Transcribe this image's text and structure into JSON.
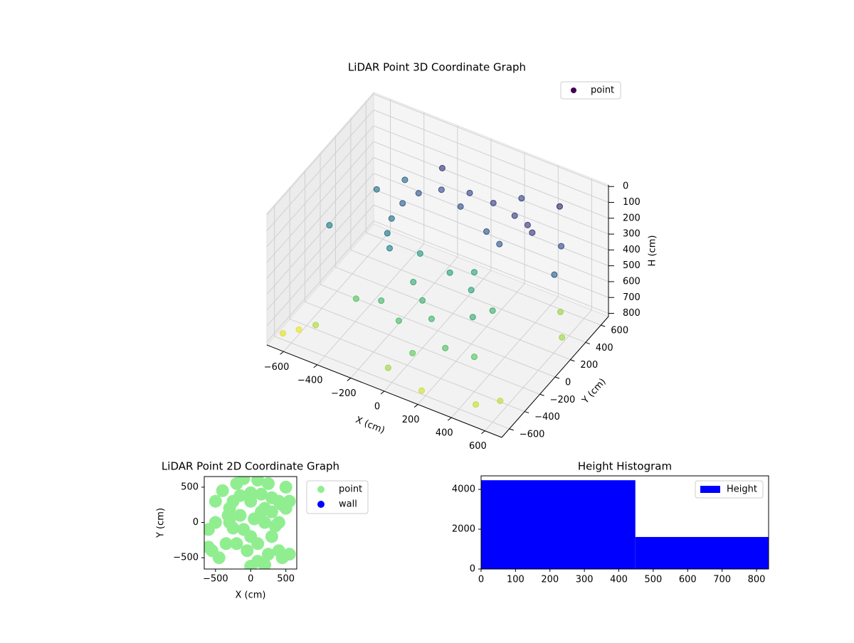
{
  "chart_data": [
    {
      "type": "scatter3d",
      "title": "LiDAR Point 3D Coordinate Graph",
      "xlabel": "X (cm)",
      "ylabel": "Y (cm)",
      "zlabel": "H (cm)",
      "colormap": "viridis",
      "legend": "upper right",
      "xlim": [
        -700,
        700
      ],
      "ylim": [
        -700,
        700
      ],
      "zlim": [
        820,
        -10
      ],
      "xticks": [
        {
          "value": -600,
          "label": "−600"
        },
        {
          "value": -400,
          "label": "−400"
        },
        {
          "value": -200,
          "label": "−200"
        },
        0,
        200,
        400,
        600
      ],
      "yticks": [
        {
          "value": -600,
          "label": "−600"
        },
        {
          "value": -400,
          "label": "−400"
        },
        {
          "value": -200,
          "label": "−200"
        },
        0,
        200,
        400,
        600
      ],
      "zticks": [
        0,
        100,
        200,
        300,
        400,
        500,
        600,
        700,
        800
      ],
      "series": [
        {
          "name": "point",
          "color": "#440154",
          "x": [
            -300,
            -250,
            -150,
            0,
            150,
            300,
            400,
            450,
            -320,
            -300,
            -250,
            0,
            200,
            300,
            -500,
            -600,
            600,
            650,
            500,
            -400,
            -100,
            0,
            100,
            200,
            150,
            -200,
            300,
            50,
            -50,
            250,
            400,
            -150,
            350,
            100,
            500,
            -600,
            650,
            550,
            -500,
            200,
            -650,
            600,
            -350,
            0,
            -200,
            250
          ],
          "y": [
            200,
            300,
            380,
            420,
            400,
            350,
            300,
            250,
            100,
            0,
            -80,
            300,
            200,
            150,
            300,
            -100,
            300,
            100,
            500,
            450,
            -100,
            -200,
            -300,
            0,
            150,
            -300,
            -200,
            50,
            -400,
            -450,
            -400,
            100,
            -50,
            -550,
            -600,
            -500,
            200,
            400,
            -500,
            -650,
            -600,
            -500,
            -300,
            -650,
            500,
            550
          ],
          "z": [
            250,
            220,
            200,
            180,
            170,
            160,
            150,
            150,
            300,
            330,
            360,
            200,
            220,
            230,
            300,
            350,
            200,
            250,
            100,
            280,
            500,
            520,
            540,
            480,
            470,
            550,
            500,
            460,
            560,
            580,
            600,
            450,
            520,
            620,
            750,
            790,
            700,
            690,
            720,
            760,
            780,
            740,
            600,
            700,
            150,
            180
          ]
        }
      ]
    },
    {
      "type": "scatter",
      "title": "LiDAR Point 2D Coordinate Graph",
      "xlabel": "X (cm)",
      "ylabel": "Y (cm)",
      "legend": "outside right",
      "xlim": [
        -660,
        655
      ],
      "ylim": [
        -660,
        650
      ],
      "xticks": [
        {
          "value": -500,
          "label": "−500"
        },
        0,
        500
      ],
      "yticks": [
        {
          "value": -500,
          "label": "−500"
        },
        0,
        500
      ],
      "series": [
        {
          "name": "point",
          "color": "#90ee90",
          "x": [
            -300,
            -250,
            -150,
            0,
            150,
            300,
            400,
            450,
            -320,
            -300,
            -250,
            0,
            200,
            300,
            -500,
            -600,
            550,
            500,
            -400,
            -100,
            0,
            100,
            200,
            150,
            -200,
            300,
            50,
            -50,
            250,
            400,
            -150,
            350,
            100,
            450,
            -550,
            500,
            -450,
            200,
            -600,
            550,
            -350,
            0,
            -200,
            250,
            -500,
            400,
            100,
            -100
          ],
          "y": [
            200,
            300,
            380,
            420,
            400,
            350,
            300,
            250,
            100,
            0,
            -80,
            300,
            200,
            150,
            300,
            -100,
            300,
            500,
            450,
            -100,
            -200,
            -300,
            0,
            150,
            -300,
            -200,
            50,
            -400,
            -450,
            -400,
            100,
            -50,
            -550,
            -500,
            -400,
            200,
            -500,
            -600,
            -350,
            -450,
            -300,
            -620,
            550,
            550,
            0,
            0,
            600,
            620
          ]
        },
        {
          "name": "wall",
          "color": "#0000ff",
          "x": [],
          "y": []
        }
      ]
    },
    {
      "type": "histogram",
      "title": "Height Histogram",
      "legend": "upper right",
      "xlim": [
        0,
        835
      ],
      "ylim": [
        0,
        4680
      ],
      "xticks": [
        0,
        100,
        200,
        300,
        400,
        500,
        600,
        700,
        800
      ],
      "yticks": [
        0,
        2000,
        4000
      ],
      "series": [
        {
          "name": "Height",
          "color": "#0000ff",
          "bins": [
            0,
            448,
            835
          ],
          "counts": [
            4460,
            1610
          ]
        }
      ]
    }
  ]
}
